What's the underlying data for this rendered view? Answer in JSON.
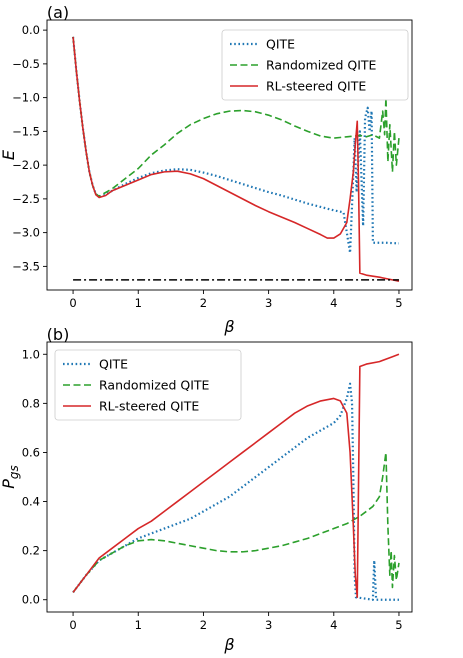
{
  "chart_data": [
    {
      "panel_label": "(a)",
      "type": "line",
      "xlabel": "β",
      "ylabel": "E",
      "xlim": [
        -0.4,
        5.2
      ],
      "ylim": [
        -3.85,
        0.15
      ],
      "xticks": [
        0,
        1,
        2,
        3,
        4,
        5
      ],
      "yticks": [
        0.0,
        -0.5,
        -1.0,
        -1.5,
        -2.0,
        -2.5,
        -3.0,
        -3.5
      ],
      "ytick_labels": [
        "0.0",
        "−0.5",
        "−1.0",
        "−1.5",
        "−2.0",
        "−2.5",
        "−3.0",
        "−3.5"
      ],
      "legend_position": "top-right",
      "grid": false,
      "series": [
        {
          "name": "QITE",
          "color": "#1f77b4",
          "style": "dotted",
          "points": [
            [
              0,
              -0.1
            ],
            [
              0.05,
              -0.6
            ],
            [
              0.1,
              -1.05
            ],
            [
              0.15,
              -1.45
            ],
            [
              0.2,
              -1.8
            ],
            [
              0.25,
              -2.1
            ],
            [
              0.3,
              -2.3
            ],
            [
              0.35,
              -2.43
            ],
            [
              0.4,
              -2.47
            ],
            [
              0.5,
              -2.44
            ],
            [
              0.6,
              -2.38
            ],
            [
              0.8,
              -2.28
            ],
            [
              1.0,
              -2.19
            ],
            [
              1.2,
              -2.12
            ],
            [
              1.4,
              -2.08
            ],
            [
              1.6,
              -2.06
            ],
            [
              1.8,
              -2.07
            ],
            [
              2.0,
              -2.11
            ],
            [
              2.2,
              -2.16
            ],
            [
              2.4,
              -2.22
            ],
            [
              2.6,
              -2.28
            ],
            [
              2.8,
              -2.34
            ],
            [
              3.0,
              -2.4
            ],
            [
              3.2,
              -2.45
            ],
            [
              3.4,
              -2.51
            ],
            [
              3.6,
              -2.57
            ],
            [
              3.8,
              -2.62
            ],
            [
              4.0,
              -2.67
            ],
            [
              4.15,
              -2.7
            ],
            [
              4.2,
              -3.0
            ],
            [
              4.25,
              -3.3
            ],
            [
              4.28,
              -2.6
            ],
            [
              4.32,
              -1.6
            ],
            [
              4.35,
              -2.4
            ],
            [
              4.4,
              -1.5
            ],
            [
              4.45,
              -2.9
            ],
            [
              4.48,
              -1.3
            ],
            [
              4.52,
              -1.15
            ],
            [
              4.55,
              -1.5
            ],
            [
              4.58,
              -1.2
            ],
            [
              4.6,
              -3.15
            ],
            [
              4.8,
              -3.15
            ],
            [
              5.0,
              -3.16
            ]
          ]
        },
        {
          "name": "Randomized QITE",
          "color": "#2ca02c",
          "style": "dashed",
          "points": [
            [
              0,
              -0.1
            ],
            [
              0.05,
              -0.6
            ],
            [
              0.1,
              -1.05
            ],
            [
              0.15,
              -1.45
            ],
            [
              0.2,
              -1.8
            ],
            [
              0.25,
              -2.1
            ],
            [
              0.3,
              -2.3
            ],
            [
              0.35,
              -2.43
            ],
            [
              0.4,
              -2.46
            ],
            [
              0.6,
              -2.35
            ],
            [
              0.8,
              -2.2
            ],
            [
              1.0,
              -2.05
            ],
            [
              1.2,
              -1.85
            ],
            [
              1.4,
              -1.7
            ],
            [
              1.6,
              -1.53
            ],
            [
              1.8,
              -1.4
            ],
            [
              2.0,
              -1.31
            ],
            [
              2.2,
              -1.24
            ],
            [
              2.4,
              -1.2
            ],
            [
              2.6,
              -1.19
            ],
            [
              2.8,
              -1.21
            ],
            [
              3.0,
              -1.26
            ],
            [
              3.2,
              -1.33
            ],
            [
              3.4,
              -1.42
            ],
            [
              3.6,
              -1.5
            ],
            [
              3.8,
              -1.57
            ],
            [
              4.0,
              -1.6
            ],
            [
              4.2,
              -1.58
            ],
            [
              4.4,
              -1.56
            ],
            [
              4.5,
              -1.58
            ],
            [
              4.6,
              -1.55
            ],
            [
              4.7,
              -1.6
            ],
            [
              4.75,
              -1.2
            ],
            [
              4.78,
              -1.55
            ],
            [
              4.8,
              -1.0
            ],
            [
              4.83,
              -1.95
            ],
            [
              4.86,
              -1.4
            ],
            [
              4.9,
              -2.1
            ],
            [
              4.93,
              -1.5
            ],
            [
              4.96,
              -2.0
            ],
            [
              5.0,
              -1.6
            ]
          ]
        },
        {
          "name": "RL-steered QITE",
          "color": "#d62728",
          "style": "solid",
          "points": [
            [
              0,
              -0.1
            ],
            [
              0.05,
              -0.6
            ],
            [
              0.1,
              -1.05
            ],
            [
              0.15,
              -1.45
            ],
            [
              0.2,
              -1.8
            ],
            [
              0.25,
              -2.1
            ],
            [
              0.3,
              -2.3
            ],
            [
              0.35,
              -2.44
            ],
            [
              0.4,
              -2.48
            ],
            [
              0.5,
              -2.45
            ],
            [
              0.6,
              -2.38
            ],
            [
              0.8,
              -2.3
            ],
            [
              1.0,
              -2.22
            ],
            [
              1.2,
              -2.14
            ],
            [
              1.4,
              -2.1
            ],
            [
              1.6,
              -2.09
            ],
            [
              1.8,
              -2.13
            ],
            [
              2.0,
              -2.2
            ],
            [
              2.2,
              -2.3
            ],
            [
              2.4,
              -2.4
            ],
            [
              2.6,
              -2.5
            ],
            [
              2.8,
              -2.6
            ],
            [
              3.0,
              -2.69
            ],
            [
              3.2,
              -2.77
            ],
            [
              3.4,
              -2.85
            ],
            [
              3.6,
              -2.94
            ],
            [
              3.8,
              -3.03
            ],
            [
              3.9,
              -3.08
            ],
            [
              4.0,
              -3.08
            ],
            [
              4.1,
              -3.02
            ],
            [
              4.2,
              -2.85
            ],
            [
              4.25,
              -2.5
            ],
            [
              4.3,
              -2.1
            ],
            [
              4.33,
              -1.7
            ],
            [
              4.36,
              -1.35
            ],
            [
              4.38,
              -2.3
            ],
            [
              4.4,
              -3.6
            ],
            [
              4.5,
              -3.63
            ],
            [
              4.7,
              -3.66
            ],
            [
              4.9,
              -3.7
            ],
            [
              5.0,
              -3.72
            ]
          ]
        },
        {
          "name": "",
          "color": "#000000",
          "style": "dashdot",
          "points": [
            [
              0,
              -3.7
            ],
            [
              5.0,
              -3.7
            ]
          ]
        }
      ]
    },
    {
      "panel_label": "(b)",
      "type": "line",
      "xlabel": "β",
      "ylabel": "P",
      "ylabel_sub": "gs",
      "xlim": [
        -0.4,
        5.2
      ],
      "ylim": [
        -0.05,
        1.05
      ],
      "xticks": [
        0,
        1,
        2,
        3,
        4,
        5
      ],
      "yticks": [
        0.0,
        0.2,
        0.4,
        0.6,
        0.8,
        1.0
      ],
      "ytick_labels": [
        "0.0",
        "0.2",
        "0.4",
        "0.6",
        "0.8",
        "1.0"
      ],
      "legend_position": "top-left",
      "grid": false,
      "series": [
        {
          "name": "QITE",
          "color": "#1f77b4",
          "style": "dotted",
          "points": [
            [
              0,
              0.03
            ],
            [
              0.2,
              0.1
            ],
            [
              0.4,
              0.16
            ],
            [
              0.6,
              0.19
            ],
            [
              0.8,
              0.22
            ],
            [
              1.0,
              0.25
            ],
            [
              1.2,
              0.27
            ],
            [
              1.4,
              0.29
            ],
            [
              1.6,
              0.31
            ],
            [
              1.8,
              0.33
            ],
            [
              2.0,
              0.36
            ],
            [
              2.2,
              0.39
            ],
            [
              2.4,
              0.42
            ],
            [
              2.6,
              0.46
            ],
            [
              2.8,
              0.5
            ],
            [
              3.0,
              0.54
            ],
            [
              3.2,
              0.58
            ],
            [
              3.4,
              0.62
            ],
            [
              3.6,
              0.66
            ],
            [
              3.8,
              0.69
            ],
            [
              4.0,
              0.72
            ],
            [
              4.1,
              0.75
            ],
            [
              4.2,
              0.82
            ],
            [
              4.25,
              0.88
            ],
            [
              4.28,
              0.8
            ],
            [
              4.3,
              0.5
            ],
            [
              4.32,
              0.1
            ],
            [
              4.34,
              0.01
            ],
            [
              4.6,
              0.0
            ],
            [
              4.62,
              0.16
            ],
            [
              4.65,
              0.0
            ],
            [
              5.0,
              0.0
            ]
          ]
        },
        {
          "name": "Randomized QITE",
          "color": "#2ca02c",
          "style": "dashed",
          "points": [
            [
              0,
              0.03
            ],
            [
              0.2,
              0.1
            ],
            [
              0.4,
              0.16
            ],
            [
              0.6,
              0.19
            ],
            [
              0.8,
              0.22
            ],
            [
              1.0,
              0.24
            ],
            [
              1.2,
              0.245
            ],
            [
              1.4,
              0.24
            ],
            [
              1.6,
              0.23
            ],
            [
              1.8,
              0.22
            ],
            [
              2.0,
              0.21
            ],
            [
              2.2,
              0.2
            ],
            [
              2.4,
              0.195
            ],
            [
              2.6,
              0.195
            ],
            [
              2.8,
              0.2
            ],
            [
              3.0,
              0.21
            ],
            [
              3.2,
              0.22
            ],
            [
              3.4,
              0.235
            ],
            [
              3.6,
              0.25
            ],
            [
              3.8,
              0.27
            ],
            [
              4.0,
              0.29
            ],
            [
              4.2,
              0.31
            ],
            [
              4.4,
              0.34
            ],
            [
              4.6,
              0.38
            ],
            [
              4.7,
              0.42
            ],
            [
              4.75,
              0.5
            ],
            [
              4.8,
              0.6
            ],
            [
              4.83,
              0.3
            ],
            [
              4.86,
              0.1
            ],
            [
              4.88,
              0.2
            ],
            [
              4.9,
              0.05
            ],
            [
              4.93,
              0.18
            ],
            [
              4.96,
              0.08
            ],
            [
              5.0,
              0.15
            ]
          ]
        },
        {
          "name": "RL-steered QITE",
          "color": "#d62728",
          "style": "solid",
          "points": [
            [
              0,
              0.03
            ],
            [
              0.2,
              0.1
            ],
            [
              0.4,
              0.17
            ],
            [
              0.6,
              0.21
            ],
            [
              0.8,
              0.25
            ],
            [
              1.0,
              0.29
            ],
            [
              1.2,
              0.32
            ],
            [
              1.4,
              0.36
            ],
            [
              1.6,
              0.4
            ],
            [
              1.8,
              0.44
            ],
            [
              2.0,
              0.48
            ],
            [
              2.2,
              0.52
            ],
            [
              2.4,
              0.56
            ],
            [
              2.6,
              0.6
            ],
            [
              2.8,
              0.64
            ],
            [
              3.0,
              0.68
            ],
            [
              3.2,
              0.72
            ],
            [
              3.4,
              0.76
            ],
            [
              3.6,
              0.79
            ],
            [
              3.8,
              0.81
            ],
            [
              4.0,
              0.82
            ],
            [
              4.1,
              0.81
            ],
            [
              4.2,
              0.76
            ],
            [
              4.25,
              0.6
            ],
            [
              4.3,
              0.3
            ],
            [
              4.33,
              0.1
            ],
            [
              4.36,
              0.01
            ],
            [
              4.4,
              0.95
            ],
            [
              4.5,
              0.96
            ],
            [
              4.7,
              0.97
            ],
            [
              4.9,
              0.99
            ],
            [
              5.0,
              1.0
            ]
          ]
        }
      ]
    }
  ]
}
